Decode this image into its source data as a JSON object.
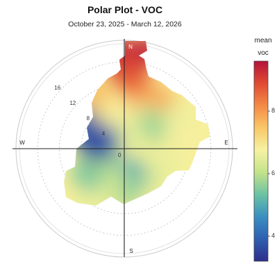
{
  "chart_data": {
    "type": "heatmap",
    "subtype": "polar-wind-rose-surface",
    "title": "Polar Plot - VOC",
    "subtitle": "October 23, 2025 - March 12, 2026",
    "directions": [
      "N",
      "E",
      "S",
      "W"
    ],
    "radial_ticks": [
      4,
      8,
      12,
      16
    ],
    "radial_max": 20,
    "colorbar": {
      "title_lines": [
        "mean",
        "voc"
      ],
      "range": [
        3.2,
        9.6
      ],
      "ticks": [
        4,
        6,
        8
      ],
      "stops": [
        "#2d2e8c",
        "#2f5fb0",
        "#3a8fc2",
        "#6cc2a4",
        "#c4e389",
        "#f6f2a3",
        "#f9c767",
        "#f48a47",
        "#e04a33",
        "#b5123a"
      ]
    },
    "grid": true,
    "legend_position": "right",
    "surface_points": [
      {
        "dir": 353,
        "ws": 18.6,
        "value": 9.4
      },
      {
        "dir": 12,
        "ws": 18.4,
        "value": 9.4
      },
      {
        "dir": 0,
        "ws": 14.5,
        "value": 9.0
      },
      {
        "dir": 8,
        "ws": 12.6,
        "value": 8.8
      },
      {
        "dir": 330,
        "ws": 11.5,
        "value": 7.6
      },
      {
        "dir": 310,
        "ws": 9.2,
        "value": 7.2
      },
      {
        "dir": 20,
        "ws": 10.0,
        "value": 8.2
      },
      {
        "dir": 38,
        "ws": 10.8,
        "value": 7.8
      },
      {
        "dir": 30,
        "ws": 6.5,
        "value": 7.0
      },
      {
        "dir": 50,
        "ws": 6.6,
        "value": 5.7
      },
      {
        "dir": 62,
        "ws": 11.5,
        "value": 6.6
      },
      {
        "dir": 80,
        "ws": 12.0,
        "value": 6.8
      },
      {
        "dir": 340,
        "ws": 5.5,
        "value": 6.8
      },
      {
        "dir": 20,
        "ws": 2.5,
        "value": 6.5
      },
      {
        "dir": 110,
        "ws": 8.0,
        "value": 6.6
      },
      {
        "dir": 140,
        "ws": 7.2,
        "value": 6.4
      },
      {
        "dir": 168,
        "ws": 5.0,
        "value": 5.0
      },
      {
        "dir": 180,
        "ws": 7.5,
        "value": 5.6
      },
      {
        "dir": 205,
        "ws": 7.0,
        "value": 6.2
      },
      {
        "dir": 215,
        "ws": 10.0,
        "value": 6.5
      },
      {
        "dir": 235,
        "ws": 8.0,
        "value": 5.4
      },
      {
        "dir": 245,
        "ws": 4.5,
        "value": 5.8
      },
      {
        "dir": 290,
        "ws": 4.0,
        "value": 4.2
      },
      {
        "dir": 296,
        "ws": 8.0,
        "value": 3.4
      },
      {
        "dir": 300,
        "ws": 10.0,
        "value": 4.0
      },
      {
        "dir": 278,
        "ws": 5.2,
        "value": 3.6
      }
    ]
  }
}
